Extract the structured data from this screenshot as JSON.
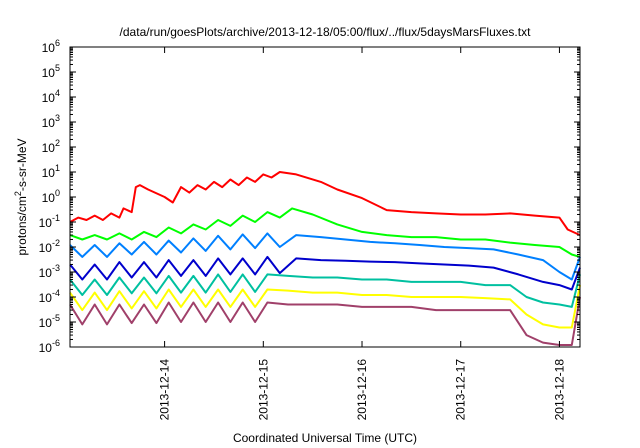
{
  "chart_data": {
    "type": "line",
    "title": "/data/run/goesPlots/archive/2013-12-18/05:00/flux/../flux/5daysMarsFluxes.txt",
    "xlabel": "Coordinated Universal Time (UTC)",
    "ylabel": {
      "pre": "protons/cm",
      "sup": "2",
      "post": "-s-sr-MeV"
    },
    "y_scale": "log",
    "ylim": [
      1e-06,
      1000000.0
    ],
    "y_ticks": [
      {
        "base": "10",
        "exp": "-6"
      },
      {
        "base": "10",
        "exp": "-5"
      },
      {
        "base": "10",
        "exp": "-4"
      },
      {
        "base": "10",
        "exp": "-3"
      },
      {
        "base": "10",
        "exp": "-2"
      },
      {
        "base": "10",
        "exp": "-1"
      },
      {
        "base": "10",
        "exp": "0"
      },
      {
        "base": "10",
        "exp": "1"
      },
      {
        "base": "10",
        "exp": "2"
      },
      {
        "base": "10",
        "exp": "3"
      },
      {
        "base": "10",
        "exp": "4"
      },
      {
        "base": "10",
        "exp": "5"
      },
      {
        "base": "10",
        "exp": "6"
      }
    ],
    "xlim": [
      "2013-12-13T01:00",
      "2013-12-18T05:00"
    ],
    "x_ticks": [
      "2013-12-14",
      "2013-12-15",
      "2013-12-16",
      "2013-12-17",
      "2013-12-18"
    ],
    "grid": false,
    "legend": "none",
    "series": [
      {
        "color": "#ff0000",
        "x": [
          "2013-12-13T01:00",
          "2013-12-13T03:00",
          "2013-12-13T05:00",
          "2013-12-13T07:00",
          "2013-12-13T09:00",
          "2013-12-13T11:00",
          "2013-12-13T13:00",
          "2013-12-13T14:00",
          "2013-12-13T16:00",
          "2013-12-13T17:00",
          "2013-12-13T18:00",
          "2013-12-13T20:00",
          "2013-12-14T00:00",
          "2013-12-14T02:00",
          "2013-12-14T04:00",
          "2013-12-14T06:00",
          "2013-12-14T08:00",
          "2013-12-14T10:00",
          "2013-12-14T12:00",
          "2013-12-14T14:00",
          "2013-12-14T16:00",
          "2013-12-14T18:00",
          "2013-12-14T20:00",
          "2013-12-14T22:00",
          "2013-12-15T00:00",
          "2013-12-15T02:00",
          "2013-12-15T04:00",
          "2013-12-15T08:00",
          "2013-12-15T14:00",
          "2013-12-15T18:00",
          "2013-12-16T00:00",
          "2013-12-16T06:00",
          "2013-12-16T12:00",
          "2013-12-16T18:00",
          "2013-12-17T00:00",
          "2013-12-17T06:00",
          "2013-12-17T12:00",
          "2013-12-17T18:00",
          "2013-12-18T00:00",
          "2013-12-18T02:00",
          "2013-12-18T05:00"
        ],
        "y": [
          0.1,
          0.15,
          0.12,
          0.18,
          0.12,
          0.22,
          0.15,
          0.35,
          0.25,
          2.5,
          3.0,
          2.0,
          1.0,
          0.6,
          2.5,
          1.5,
          3.0,
          2.0,
          4.0,
          2.5,
          5.0,
          3.0,
          6.0,
          4.0,
          8.0,
          6.0,
          10.0,
          8.0,
          4.0,
          2.0,
          0.9,
          0.3,
          0.25,
          0.22,
          0.2,
          0.2,
          0.22,
          0.18,
          0.15,
          0.05,
          0.03
        ]
      },
      {
        "color": "#00ff00",
        "x": [
          "2013-12-13T01:00",
          "2013-12-13T04:00",
          "2013-12-13T07:00",
          "2013-12-13T10:00",
          "2013-12-13T13:00",
          "2013-12-13T16:00",
          "2013-12-13T19:00",
          "2013-12-13T22:00",
          "2013-12-14T01:00",
          "2013-12-14T04:00",
          "2013-12-14T07:00",
          "2013-12-14T10:00",
          "2013-12-14T13:00",
          "2013-12-14T16:00",
          "2013-12-14T19:00",
          "2013-12-14T22:00",
          "2013-12-15T01:00",
          "2013-12-15T04:00",
          "2013-12-15T07:00",
          "2013-12-15T12:00",
          "2013-12-15T18:00",
          "2013-12-16T00:00",
          "2013-12-16T06:00",
          "2013-12-16T12:00",
          "2013-12-16T18:00",
          "2013-12-17T00:00",
          "2013-12-17T06:00",
          "2013-12-17T12:00",
          "2013-12-17T18:00",
          "2013-12-18T00:00",
          "2013-12-18T03:00",
          "2013-12-18T05:00"
        ],
        "y": [
          0.03,
          0.02,
          0.03,
          0.02,
          0.035,
          0.02,
          0.04,
          0.025,
          0.06,
          0.035,
          0.08,
          0.05,
          0.12,
          0.07,
          0.18,
          0.1,
          0.25,
          0.15,
          0.35,
          0.2,
          0.08,
          0.04,
          0.03,
          0.025,
          0.025,
          0.02,
          0.02,
          0.015,
          0.012,
          0.01,
          0.005,
          0.004
        ]
      },
      {
        "color": "#0080ff",
        "x": [
          "2013-12-13T01:00",
          "2013-12-13T04:00",
          "2013-12-13T07:00",
          "2013-12-13T10:00",
          "2013-12-13T13:00",
          "2013-12-13T16:00",
          "2013-12-13T19:00",
          "2013-12-13T22:00",
          "2013-12-14T01:00",
          "2013-12-14T04:00",
          "2013-12-14T07:00",
          "2013-12-14T10:00",
          "2013-12-14T13:00",
          "2013-12-14T16:00",
          "2013-12-14T19:00",
          "2013-12-14T22:00",
          "2013-12-15T01:00",
          "2013-12-15T04:00",
          "2013-12-15T08:00",
          "2013-12-15T14:00",
          "2013-12-15T20:00",
          "2013-12-16T02:00",
          "2013-12-16T08:00",
          "2013-12-16T14:00",
          "2013-12-16T20:00",
          "2013-12-17T02:00",
          "2013-12-17T08:00",
          "2013-12-17T14:00",
          "2013-12-17T20:00",
          "2013-12-18T00:00",
          "2013-12-18T03:00",
          "2013-12-18T05:00"
        ],
        "y": [
          0.012,
          0.004,
          0.012,
          0.004,
          0.014,
          0.005,
          0.016,
          0.005,
          0.018,
          0.006,
          0.022,
          0.007,
          0.028,
          0.008,
          0.032,
          0.009,
          0.035,
          0.01,
          0.03,
          0.025,
          0.02,
          0.016,
          0.014,
          0.012,
          0.01,
          0.009,
          0.008,
          0.005,
          0.003,
          0.001,
          0.0005,
          0.004
        ]
      },
      {
        "color": "#0000cc",
        "x": [
          "2013-12-13T01:00",
          "2013-12-13T04:00",
          "2013-12-13T07:00",
          "2013-12-13T10:00",
          "2013-12-13T13:00",
          "2013-12-13T16:00",
          "2013-12-13T19:00",
          "2013-12-13T22:00",
          "2013-12-14T01:00",
          "2013-12-14T04:00",
          "2013-12-14T07:00",
          "2013-12-14T10:00",
          "2013-12-14T13:00",
          "2013-12-14T16:00",
          "2013-12-14T19:00",
          "2013-12-14T22:00",
          "2013-12-15T01:00",
          "2013-12-15T04:00",
          "2013-12-15T08:00",
          "2013-12-15T14:00",
          "2013-12-15T20:00",
          "2013-12-16T02:00",
          "2013-12-16T08:00",
          "2013-12-16T14:00",
          "2013-12-16T20:00",
          "2013-12-17T02:00",
          "2013-12-17T08:00",
          "2013-12-17T14:00",
          "2013-12-17T20:00",
          "2013-12-18T00:00",
          "2013-12-18T03:00",
          "2013-12-18T05:00"
        ],
        "y": [
          0.002,
          0.0005,
          0.002,
          0.0005,
          0.0025,
          0.0006,
          0.0025,
          0.0006,
          0.003,
          0.0007,
          0.003,
          0.0007,
          0.0035,
          0.0008,
          0.0035,
          0.0008,
          0.004,
          0.0009,
          0.0035,
          0.003,
          0.0028,
          0.0026,
          0.0025,
          0.0022,
          0.002,
          0.0018,
          0.0015,
          0.0008,
          0.0004,
          0.0003,
          0.0002,
          0.0015
        ]
      },
      {
        "color": "#00c0a0",
        "x": [
          "2013-12-13T01:00",
          "2013-12-13T04:00",
          "2013-12-13T07:00",
          "2013-12-13T10:00",
          "2013-12-13T13:00",
          "2013-12-13T16:00",
          "2013-12-13T19:00",
          "2013-12-13T22:00",
          "2013-12-14T01:00",
          "2013-12-14T04:00",
          "2013-12-14T07:00",
          "2013-12-14T10:00",
          "2013-12-14T13:00",
          "2013-12-14T16:00",
          "2013-12-14T19:00",
          "2013-12-14T22:00",
          "2013-12-15T01:00",
          "2013-12-15T06:00",
          "2013-12-15T12:00",
          "2013-12-15T18:00",
          "2013-12-16T00:00",
          "2013-12-16T06:00",
          "2013-12-16T12:00",
          "2013-12-16T18:00",
          "2013-12-17T00:00",
          "2013-12-17T06:00",
          "2013-12-17T12:00",
          "2013-12-17T16:00",
          "2013-12-17T20:00",
          "2013-12-18T00:00",
          "2013-12-18T03:00",
          "2013-12-18T05:00"
        ],
        "y": [
          0.0005,
          0.00012,
          0.0005,
          0.00012,
          0.0006,
          0.00014,
          0.0006,
          0.00014,
          0.0007,
          0.00015,
          0.0007,
          0.00015,
          0.0008,
          0.00016,
          0.0008,
          0.00016,
          0.0008,
          0.0007,
          0.0006,
          0.0006,
          0.0005,
          0.0005,
          0.0004,
          0.0004,
          0.0004,
          0.0003,
          0.0003,
          0.0001,
          6e-05,
          5e-05,
          4e-05,
          0.0008
        ]
      },
      {
        "color": "#ffff00",
        "x": [
          "2013-12-13T01:00",
          "2013-12-13T04:00",
          "2013-12-13T07:00",
          "2013-12-13T10:00",
          "2013-12-13T13:00",
          "2013-12-13T16:00",
          "2013-12-13T19:00",
          "2013-12-13T22:00",
          "2013-12-14T01:00",
          "2013-12-14T04:00",
          "2013-12-14T07:00",
          "2013-12-14T10:00",
          "2013-12-14T13:00",
          "2013-12-14T16:00",
          "2013-12-14T19:00",
          "2013-12-14T22:00",
          "2013-12-15T01:00",
          "2013-12-15T06:00",
          "2013-12-15T12:00",
          "2013-12-15T18:00",
          "2013-12-16T00:00",
          "2013-12-16T06:00",
          "2013-12-16T12:00",
          "2013-12-16T18:00",
          "2013-12-17T00:00",
          "2013-12-17T06:00",
          "2013-12-17T12:00",
          "2013-12-17T16:00",
          "2013-12-17T20:00",
          "2013-12-18T00:00",
          "2013-12-18T03:00",
          "2013-12-18T05:00"
        ],
        "y": [
          0.00015,
          3e-05,
          0.00015,
          3e-05,
          0.00017,
          3.5e-05,
          0.00017,
          3.5e-05,
          0.0002,
          4e-05,
          0.0002,
          4e-05,
          0.0002,
          4e-05,
          0.0002,
          4e-05,
          0.0002,
          0.00018,
          0.00015,
          0.00015,
          0.00012,
          0.00012,
          0.0001,
          0.0001,
          0.0001,
          9e-05,
          8e-05,
          2e-05,
          8e-06,
          6e-06,
          6e-06,
          0.0003
        ]
      },
      {
        "color": "#a0406a",
        "x": [
          "2013-12-13T01:00",
          "2013-12-13T04:00",
          "2013-12-13T07:00",
          "2013-12-13T10:00",
          "2013-12-13T13:00",
          "2013-12-13T16:00",
          "2013-12-13T19:00",
          "2013-12-13T22:00",
          "2013-12-14T01:00",
          "2013-12-14T04:00",
          "2013-12-14T07:00",
          "2013-12-14T10:00",
          "2013-12-14T13:00",
          "2013-12-14T16:00",
          "2013-12-14T19:00",
          "2013-12-14T22:00",
          "2013-12-15T01:00",
          "2013-12-15T06:00",
          "2013-12-15T12:00",
          "2013-12-15T18:00",
          "2013-12-16T00:00",
          "2013-12-16T06:00",
          "2013-12-16T12:00",
          "2013-12-16T18:00",
          "2013-12-17T00:00",
          "2013-12-17T06:00",
          "2013-12-17T12:00",
          "2013-12-17T16:00",
          "2013-12-17T20:00",
          "2013-12-18T00:00",
          "2013-12-18T03:00",
          "2013-12-18T05:00"
        ],
        "y": [
          5e-05,
          8e-06,
          5e-05,
          8e-06,
          5e-05,
          9e-06,
          5e-05,
          9e-06,
          6e-05,
          1e-05,
          6e-05,
          1e-05,
          6e-05,
          1e-05,
          6e-05,
          1e-05,
          6e-05,
          5e-05,
          5e-05,
          5e-05,
          4e-05,
          4e-05,
          4e-05,
          3e-05,
          3e-05,
          3e-05,
          3e-05,
          3e-06,
          1.5e-06,
          1.2e-06,
          1.2e-06,
          0.0001
        ]
      }
    ]
  }
}
